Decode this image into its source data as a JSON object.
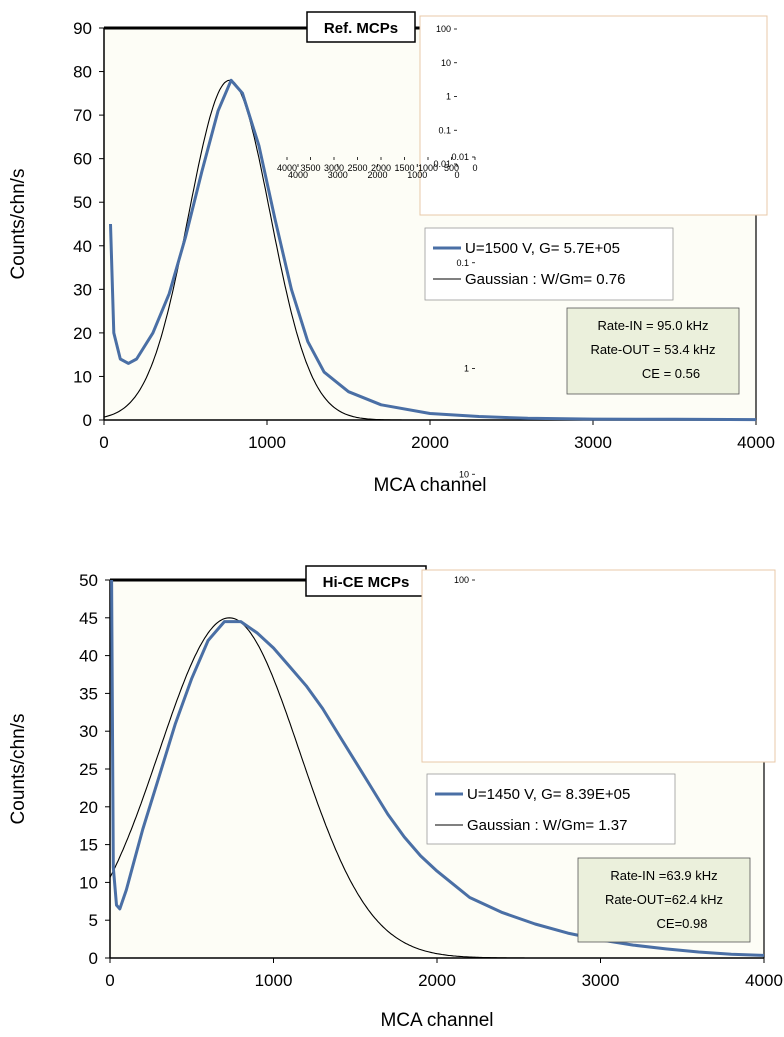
{
  "chart_data": [
    {
      "type": "line",
      "title": "Ref. MCPs",
      "xlabel": "MCA channel",
      "ylabel": "Counts/chn/s",
      "xlim": [
        0,
        4000
      ],
      "ylim": [
        0,
        90
      ],
      "xticks": [
        "0",
        "1000",
        "2000",
        "3000",
        "4000"
      ],
      "yticks": [
        "0",
        "10",
        "20",
        "30",
        "40",
        "50",
        "60",
        "70",
        "80",
        "90"
      ],
      "series": [
        {
          "name": "U=1500 V,  G= 5.7E+05",
          "color": "#4a6fa5",
          "x": [
            40,
            60,
            100,
            150,
            200,
            300,
            400,
            500,
            600,
            700,
            780,
            850,
            950,
            1050,
            1150,
            1250,
            1350,
            1500,
            1700,
            2000,
            2300,
            2600,
            3000,
            3500,
            4000
          ],
          "y": [
            45,
            20,
            14,
            13,
            14,
            20,
            29,
            42,
            57,
            71,
            78,
            75,
            63,
            46,
            30,
            18,
            11,
            6.5,
            3.5,
            1.5,
            0.8,
            0.4,
            0.2,
            0.15,
            0.1
          ]
        },
        {
          "name": "Gaussian : W/Gm= 0.76",
          "color": "#000000",
          "model": "gaussian",
          "amplitude": 78,
          "center": 770,
          "sigma": 250
        }
      ],
      "inset": {
        "scale": "log",
        "xlim": [
          0,
          4000
        ],
        "ylim": [
          0.01,
          100
        ],
        "xticks": [
          "0",
          "1000",
          "2000",
          "3000",
          "4000"
        ],
        "yticks": [
          "0.01",
          "0.1",
          "1",
          "10",
          "100"
        ]
      },
      "legend": {
        "position": "right",
        "entries": [
          "U=1500 V,  G= 5.7E+05",
          "Gaussian : W/Gm= 0.76"
        ]
      },
      "annotation": [
        "Rate-IN    = 95.0 kHz",
        "Rate-OUT = 53.4 kHz",
        "CE = 0.56"
      ]
    },
    {
      "type": "line",
      "title": "Hi-CE MCPs",
      "xlabel": "MCA channel",
      "ylabel": "Counts/chn/s",
      "xlim": [
        0,
        4000
      ],
      "ylim": [
        0,
        50
      ],
      "xticks": [
        "0",
        "1000",
        "2000",
        "3000",
        "4000"
      ],
      "yticks": [
        "0",
        "5",
        "10",
        "15",
        "20",
        "25",
        "30",
        "35",
        "40",
        "45",
        "50"
      ],
      "series": [
        {
          "name": "U=1450 V,  G= 8.39E+05",
          "color": "#4a6fa5",
          "x": [
            10,
            20,
            40,
            60,
            100,
            150,
            200,
            300,
            400,
            500,
            600,
            700,
            800,
            900,
            1000,
            1100,
            1200,
            1300,
            1400,
            1500,
            1600,
            1700,
            1800,
            1900,
            2000,
            2200,
            2400,
            2600,
            2800,
            3000,
            3200,
            3400,
            3600,
            3800,
            4000
          ],
          "y": [
            50,
            12,
            7,
            6.5,
            9,
            13,
            17,
            24,
            31,
            37,
            42,
            44.5,
            44.5,
            43,
            41,
            38.5,
            36,
            33,
            29.5,
            26,
            22.5,
            19,
            16,
            13.5,
            11.5,
            8,
            6,
            4.5,
            3.3,
            2.4,
            1.7,
            1.2,
            0.8,
            0.5,
            0.35
          ]
        },
        {
          "name": "Gaussian : W/Gm= 1.37",
          "color": "#000000",
          "model": "gaussian",
          "amplitude": 45,
          "center": 730,
          "sigma": 430
        }
      ],
      "inset": {
        "scale": "log",
        "xlim": [
          0,
          4000
        ],
        "ylim": [
          0.01,
          100
        ],
        "xticks": [
          "0",
          "500",
          "1000",
          "1500",
          "2000",
          "2500",
          "3000",
          "3500",
          "4000"
        ],
        "yticks": [
          "0.01",
          "0.1",
          "1",
          "10",
          "100"
        ]
      },
      "legend": {
        "position": "right",
        "entries": [
          "U=1450 V,  G= 8.39E+05",
          "Gaussian : W/Gm= 1.37"
        ]
      },
      "annotation": [
        "Rate-IN    =63.9 kHz",
        "Rate-OUT=62.4 kHz",
        "CE=0.98"
      ]
    }
  ]
}
